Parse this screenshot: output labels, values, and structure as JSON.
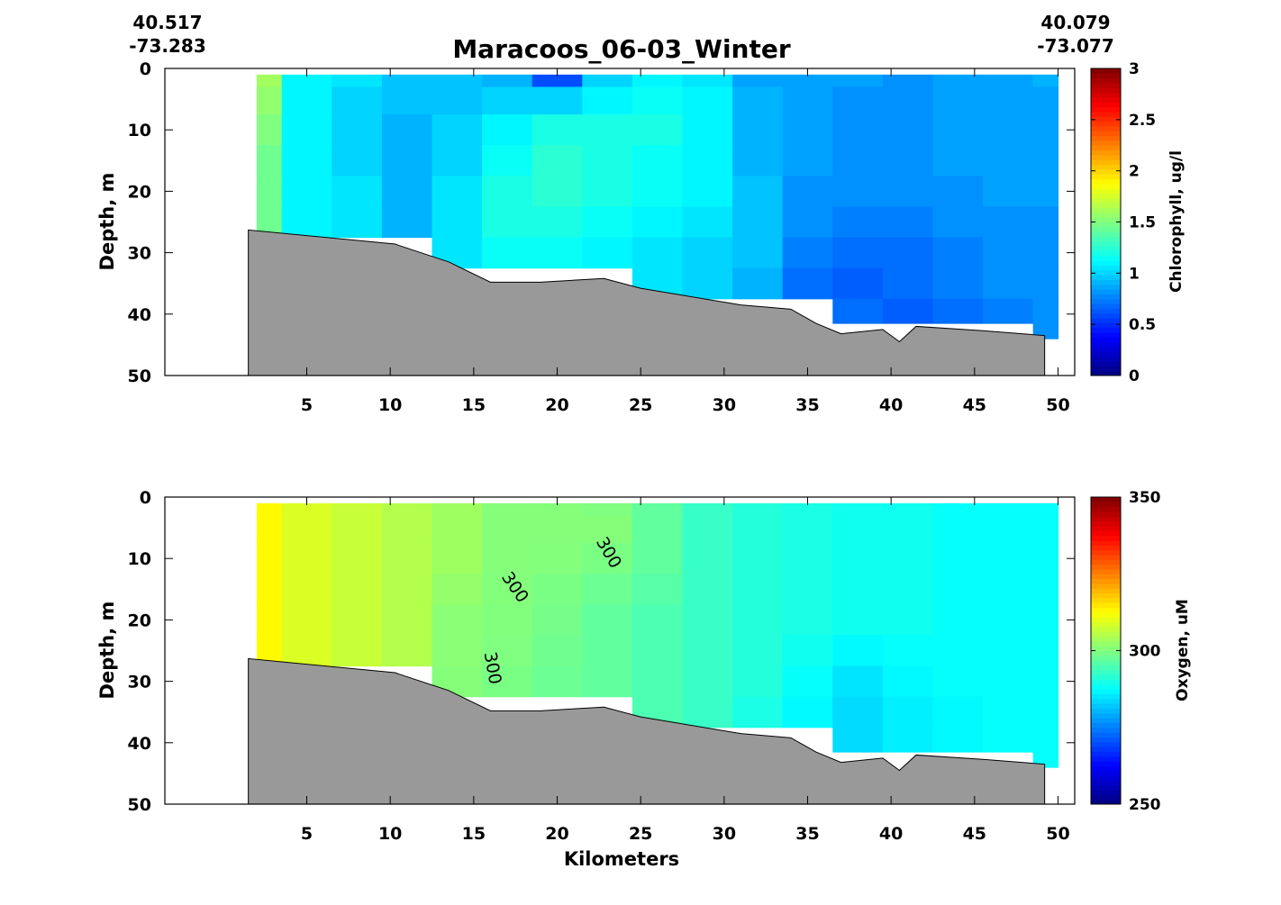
{
  "figure": {
    "title": "Maracoos_06-03_Winter",
    "start_coord": {
      "lat": "40.517",
      "lon": "-73.283"
    },
    "end_coord": {
      "lat": "40.079",
      "lon": "-73.077"
    },
    "xlabel": "Kilometers"
  },
  "chart_data": [
    {
      "type": "heatmap",
      "name": "chlorophyll-section",
      "ylabel": "Depth, m",
      "colorbar_label": "Chlorophyll, ug/l",
      "colormap": "jet",
      "clim": [
        0,
        3
      ],
      "colorbar_ticks": [
        "0",
        "0.5",
        "1",
        "1.5",
        "2",
        "2.5",
        "3"
      ],
      "colorbar_tick_values": [
        0,
        0.5,
        1,
        1.5,
        2,
        2.5,
        3
      ],
      "xlim": [
        -3.5,
        51
      ],
      "ylim": [
        0,
        50
      ],
      "y_reversed": true,
      "xticks": [
        5,
        10,
        15,
        20,
        25,
        30,
        35,
        40,
        45,
        50
      ],
      "yticks": [
        0,
        10,
        20,
        30,
        40,
        50
      ],
      "x": [
        2,
        5,
        8,
        11,
        14,
        17,
        20,
        23,
        26,
        29,
        32,
        35,
        38,
        41,
        44,
        47,
        50
      ],
      "depth": [
        1,
        5,
        10,
        15,
        20,
        25,
        30,
        35,
        40,
        43
      ],
      "values": [
        [
          1.6,
          1.1,
          1.05,
          0.95,
          0.95,
          0.9,
          0.6,
          1.0,
          1.1,
          1.05,
          0.85,
          0.85,
          0.85,
          0.8,
          0.85,
          0.85,
          0.9
        ],
        [
          1.55,
          1.1,
          1.0,
          0.95,
          0.95,
          1.0,
          1.0,
          1.1,
          1.15,
          1.1,
          0.9,
          0.85,
          0.8,
          0.8,
          0.85,
          0.85,
          0.85
        ],
        [
          1.5,
          1.1,
          1.0,
          0.9,
          1.0,
          1.1,
          1.2,
          1.2,
          1.2,
          1.1,
          0.9,
          0.85,
          0.8,
          0.8,
          0.85,
          0.85,
          0.85
        ],
        [
          1.45,
          1.1,
          1.0,
          0.9,
          1.0,
          1.15,
          1.25,
          1.2,
          1.15,
          1.1,
          0.9,
          0.85,
          0.8,
          0.8,
          0.85,
          0.85,
          0.85
        ],
        [
          1.45,
          1.1,
          1.05,
          0.9,
          1.05,
          1.2,
          1.25,
          1.2,
          1.15,
          1.1,
          0.95,
          0.8,
          0.8,
          0.8,
          0.8,
          0.85,
          0.85
        ],
        [
          1.45,
          1.1,
          1.05,
          0.9,
          1.05,
          1.2,
          1.2,
          1.15,
          1.1,
          1.05,
          0.95,
          0.8,
          0.75,
          0.75,
          0.8,
          0.8,
          0.8
        ],
        [
          null,
          null,
          null,
          null,
          1.05,
          1.15,
          1.15,
          1.1,
          1.05,
          1.0,
          0.95,
          0.75,
          0.7,
          0.7,
          0.75,
          0.8,
          0.8
        ],
        [
          null,
          null,
          null,
          null,
          null,
          null,
          null,
          null,
          1.05,
          1.0,
          0.9,
          0.7,
          0.65,
          0.7,
          0.75,
          0.8,
          0.8
        ],
        [
          null,
          null,
          null,
          null,
          null,
          null,
          null,
          null,
          null,
          null,
          null,
          null,
          0.7,
          0.65,
          0.7,
          0.75,
          0.8
        ],
        [
          null,
          null,
          null,
          null,
          null,
          null,
          null,
          null,
          null,
          null,
          null,
          null,
          null,
          null,
          null,
          null,
          0.8
        ]
      ],
      "contour_labels": []
    },
    {
      "type": "heatmap",
      "name": "oxygen-section",
      "ylabel": "Depth, m",
      "colorbar_label": "Oxygen, uM",
      "colormap": "jet",
      "clim": [
        250,
        350
      ],
      "colorbar_ticks": [
        "250",
        "300",
        "350"
      ],
      "colorbar_tick_values": [
        250,
        300,
        350
      ],
      "xlim": [
        -3.5,
        51
      ],
      "ylim": [
        0,
        50
      ],
      "y_reversed": true,
      "xticks": [
        5,
        10,
        15,
        20,
        25,
        30,
        35,
        40,
        45,
        50
      ],
      "yticks": [
        0,
        10,
        20,
        30,
        40,
        50
      ],
      "x": [
        2,
        5,
        8,
        11,
        14,
        17,
        20,
        23,
        26,
        29,
        32,
        35,
        38,
        41,
        44,
        47,
        50
      ],
      "depth": [
        1,
        5,
        10,
        15,
        20,
        25,
        30,
        35,
        40,
        43
      ],
      "values": [
        [
          313,
          309,
          307,
          305,
          303,
          300.5,
          300.5,
          300,
          297,
          293,
          291,
          290,
          289,
          289,
          288,
          288,
          288
        ],
        [
          313,
          309,
          307,
          305,
          303,
          300.5,
          300.5,
          300.5,
          297,
          293,
          291,
          290,
          289,
          289,
          288,
          288,
          288
        ],
        [
          313,
          309,
          307,
          305,
          303,
          300.5,
          300.3,
          299.5,
          297,
          293,
          291,
          290,
          289,
          289,
          288,
          288,
          288
        ],
        [
          313,
          309,
          307,
          305,
          302,
          300.3,
          299.5,
          298,
          296,
          293,
          291,
          290,
          289,
          289,
          288,
          288,
          288
        ],
        [
          313,
          309,
          307,
          305,
          301,
          300.2,
          299,
          297,
          295,
          293,
          291,
          290,
          289,
          289,
          288,
          288,
          288
        ],
        [
          313,
          309,
          307,
          305,
          301,
          300,
          298.5,
          297,
          295,
          293,
          291,
          289,
          287,
          288,
          288,
          288,
          288
        ],
        [
          null,
          null,
          null,
          null,
          300.5,
          299.5,
          298,
          297,
          295,
          293,
          291,
          288,
          285,
          287,
          288,
          288,
          288
        ],
        [
          null,
          null,
          null,
          null,
          null,
          null,
          null,
          null,
          295,
          293,
          290,
          287,
          284,
          286,
          287,
          288,
          288
        ],
        [
          null,
          null,
          null,
          null,
          null,
          null,
          null,
          null,
          null,
          null,
          null,
          null,
          284,
          286,
          287,
          288,
          288
        ],
        [
          null,
          null,
          null,
          null,
          null,
          null,
          null,
          null,
          null,
          null,
          null,
          null,
          null,
          null,
          null,
          null,
          288
        ]
      ],
      "contour_labels": [
        {
          "text": "300",
          "x": 17.2,
          "depth": 15.2,
          "rotate": 55
        },
        {
          "text": "300",
          "x": 22.8,
          "depth": 9.5,
          "rotate": 60
        },
        {
          "text": "300",
          "x": 15.8,
          "depth": 28.0,
          "rotate": 80
        }
      ]
    }
  ],
  "bathymetry": {
    "x": [
      1.5,
      1.5,
      10.3,
      10.5,
      13.5,
      16.0,
      19.0,
      22.8,
      25.0,
      31.0,
      34.0,
      35.5,
      37.0,
      39.5,
      40.5,
      41.5,
      45.5,
      49.2,
      49.2
    ],
    "depth": [
      50,
      26.3,
      28.6,
      28.8,
      31.5,
      34.8,
      34.8,
      34.2,
      35.8,
      38.5,
      39.2,
      41.5,
      43.2,
      42.5,
      44.5,
      42.0,
      42.7,
      43.5,
      50
    ]
  },
  "colors": {
    "bathymetry_fill": "#999999",
    "outline": "#000000"
  }
}
